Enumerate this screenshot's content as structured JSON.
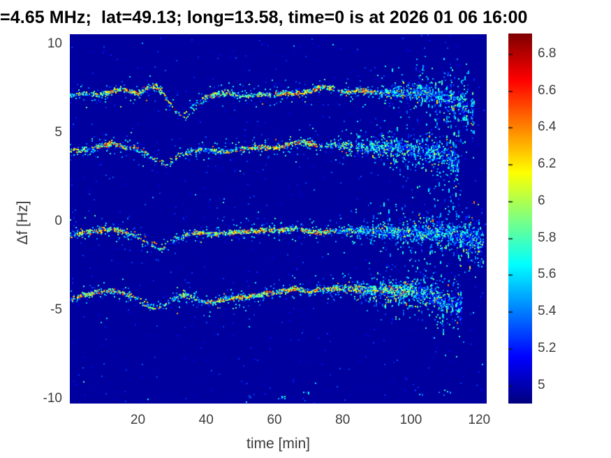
{
  "title": "=4.65 MHz;  lat=49.13; long=13.58, time=0 is at 2026 01 06 16:00",
  "chart_data": {
    "type": "heatmap",
    "title": "=4.65 MHz;  lat=49.13; long=13.58, time=0 is at 2026 01 06 16:00",
    "xlabel": "time [min]",
    "ylabel": "Δf [Hz]",
    "xlim": [
      0.05,
      122.2
    ],
    "ylim": [
      -10.26,
      10.57
    ],
    "xticks": [
      20,
      40,
      60,
      80,
      100,
      120
    ],
    "yticks": [
      10,
      5,
      0,
      -5,
      -10
    ],
    "grid": false,
    "legend": "none",
    "colorbar": {
      "range": [
        4.9,
        6.91
      ],
      "ticks": [
        5,
        5.2,
        5.4,
        5.6,
        5.8,
        6,
        6.2,
        6.4,
        6.6,
        6.8
      ],
      "colormap": "jet",
      "position": "right"
    },
    "background_value": 4.96,
    "seed": 7,
    "noise_count": 1000,
    "bottom_specks": [
      [
        53,
        -9.9
      ],
      [
        62,
        -9.85
      ],
      [
        69,
        -9.8
      ],
      [
        103,
        -9.75
      ],
      [
        110,
        -9.6
      ]
    ],
    "traces": [
      {
        "name": "doppler-trace-upper-1",
        "t_range": [
          0.3,
          119
        ],
        "fuzzy_start": 86,
        "gap": 0.12,
        "sparse": [
          [
            27,
            39
          ]
        ],
        "hot": [
          [
            10,
            26
          ],
          [
            40,
            47
          ],
          [
            55,
            90
          ]
        ],
        "points": [
          [
            0,
            7.1
          ],
          [
            4,
            7.25
          ],
          [
            8,
            7.15
          ],
          [
            12,
            7.3
          ],
          [
            15,
            7.55
          ],
          [
            17,
            7.4
          ],
          [
            20,
            7.25
          ],
          [
            23,
            7.55
          ],
          [
            25,
            7.65
          ],
          [
            27,
            7.35
          ],
          [
            29,
            6.75
          ],
          [
            31,
            6.2
          ],
          [
            32.5,
            6.05
          ],
          [
            34,
            6.2
          ],
          [
            36,
            6.55
          ],
          [
            38,
            6.85
          ],
          [
            40,
            7.05
          ],
          [
            43,
            7.2
          ],
          [
            46,
            7.3
          ],
          [
            49,
            7.15
          ],
          [
            52,
            7.1
          ],
          [
            56,
            7.2
          ],
          [
            60,
            7.15
          ],
          [
            63,
            7.3
          ],
          [
            66,
            7.25
          ],
          [
            70,
            7.35
          ],
          [
            74,
            7.65
          ],
          [
            76,
            7.55
          ],
          [
            79,
            7.35
          ],
          [
            82,
            7.3
          ],
          [
            85,
            7.45
          ],
          [
            88,
            7.35
          ],
          [
            92,
            7.3
          ],
          [
            96,
            7.35
          ],
          [
            100,
            7.25
          ],
          [
            104,
            7.3
          ],
          [
            108,
            7.1
          ],
          [
            112,
            6.85
          ],
          [
            115,
            6.6
          ],
          [
            119,
            6.25
          ]
        ],
        "ghost": {
          "t_range": [
            27.5,
            39
          ],
          "points": [
            [
              27.5,
              7.0
            ],
            [
              30,
              6.5
            ],
            [
              32,
              6.05
            ],
            [
              33.5,
              5.9
            ],
            [
              35,
              6.0
            ],
            [
              37,
              6.35
            ],
            [
              39,
              6.8
            ]
          ]
        }
      },
      {
        "name": "doppler-trace-upper-2",
        "t_range": [
          0.3,
          114
        ],
        "fuzzy_start": 74,
        "gap": 0.15,
        "sparse": [
          [
            20,
            34
          ]
        ],
        "hot": [
          [
            8,
            16
          ],
          [
            50,
            72
          ]
        ],
        "points": [
          [
            0,
            4.0
          ],
          [
            3,
            4.05
          ],
          [
            6,
            4.1
          ],
          [
            9,
            4.3
          ],
          [
            12,
            4.4
          ],
          [
            14,
            4.35
          ],
          [
            16,
            4.2
          ],
          [
            18,
            4.2
          ],
          [
            20,
            4.05
          ],
          [
            23,
            3.7
          ],
          [
            26,
            3.3
          ],
          [
            28,
            3.2
          ],
          [
            30,
            3.35
          ],
          [
            33,
            3.75
          ],
          [
            36,
            4.05
          ],
          [
            39,
            4.1
          ],
          [
            42,
            4.0
          ],
          [
            45,
            3.95
          ],
          [
            48,
            4.05
          ],
          [
            52,
            4.15
          ],
          [
            55,
            4.2
          ],
          [
            58,
            4.15
          ],
          [
            61,
            4.2
          ],
          [
            64,
            4.35
          ],
          [
            68,
            4.55
          ],
          [
            70,
            4.45
          ],
          [
            73,
            4.3
          ],
          [
            78,
            4.3
          ],
          [
            82,
            4.25
          ],
          [
            86,
            4.3
          ],
          [
            90,
            4.2
          ],
          [
            94,
            4.25
          ],
          [
            98,
            4.15
          ],
          [
            102,
            4.05
          ],
          [
            106,
            3.9
          ],
          [
            110,
            3.65
          ],
          [
            114,
            3.3
          ]
        ],
        "ghost": {
          "t_range": [
            17,
            33
          ],
          "points": [
            [
              17,
              4.45
            ],
            [
              19,
              4.3
            ],
            [
              22,
              4.0
            ],
            [
              25,
              3.6
            ],
            [
              27,
              3.4
            ],
            [
              29,
              3.5
            ],
            [
              31,
              3.7
            ],
            [
              33,
              3.95
            ]
          ]
        }
      },
      {
        "name": "doppler-trace-lower-1",
        "t_range": [
          0.3,
          121.5
        ],
        "fuzzy_start": 76,
        "gap": 0.1,
        "sparse": [
          [
            19,
            31
          ]
        ],
        "hot": [
          [
            3,
            17
          ],
          [
            36,
            75
          ]
        ],
        "points": [
          [
            0,
            -0.75
          ],
          [
            4,
            -0.6
          ],
          [
            8,
            -0.5
          ],
          [
            11,
            -0.4
          ],
          [
            13,
            -0.4
          ],
          [
            16,
            -0.55
          ],
          [
            19,
            -0.8
          ],
          [
            22,
            -1.1
          ],
          [
            25,
            -1.45
          ],
          [
            27,
            -1.5
          ],
          [
            29,
            -1.3
          ],
          [
            31,
            -1.0
          ],
          [
            34,
            -0.75
          ],
          [
            37,
            -0.6
          ],
          [
            40,
            -0.7
          ],
          [
            44,
            -0.65
          ],
          [
            48,
            -0.6
          ],
          [
            52,
            -0.55
          ],
          [
            56,
            -0.5
          ],
          [
            60,
            -0.45
          ],
          [
            63,
            -0.45
          ],
          [
            66,
            -0.35
          ],
          [
            69,
            -0.5
          ],
          [
            72,
            -0.6
          ],
          [
            76,
            -0.5
          ],
          [
            80,
            -0.45
          ],
          [
            84,
            -0.5
          ],
          [
            88,
            -0.55
          ],
          [
            92,
            -0.5
          ],
          [
            96,
            -0.55
          ],
          [
            100,
            -0.6
          ],
          [
            104,
            -0.55
          ],
          [
            108,
            -0.6
          ],
          [
            112,
            -0.7
          ],
          [
            116,
            -0.9
          ],
          [
            121,
            -1.2
          ]
        ],
        "ghost": {
          "t_range": [
            19,
            31
          ],
          "points": [
            [
              19,
              -0.6
            ],
            [
              22,
              -0.85
            ],
            [
              25,
              -1.2
            ],
            [
              27,
              -1.3
            ],
            [
              29,
              -1.1
            ],
            [
              31,
              -0.85
            ]
          ]
        }
      },
      {
        "name": "doppler-trace-lower-2",
        "t_range": [
          0.3,
          115
        ],
        "fuzzy_start": 74,
        "gap": 0.1,
        "sparse": [
          [
            18,
            30
          ]
        ],
        "hot": [
          [
            3,
            16
          ],
          [
            40,
            102
          ]
        ],
        "points": [
          [
            0,
            -4.35
          ],
          [
            3,
            -4.2
          ],
          [
            6,
            -4.05
          ],
          [
            9,
            -3.95
          ],
          [
            11,
            -3.9
          ],
          [
            14,
            -3.95
          ],
          [
            17,
            -4.15
          ],
          [
            20,
            -4.5
          ],
          [
            23,
            -4.8
          ],
          [
            25,
            -4.9
          ],
          [
            27,
            -4.75
          ],
          [
            30,
            -4.45
          ],
          [
            32,
            -4.2
          ],
          [
            34,
            -4.1
          ],
          [
            36,
            -4.25
          ],
          [
            38,
            -4.45
          ],
          [
            40,
            -4.55
          ],
          [
            42,
            -4.5
          ],
          [
            45,
            -4.4
          ],
          [
            48,
            -4.3
          ],
          [
            51,
            -4.25
          ],
          [
            54,
            -4.15
          ],
          [
            57,
            -4.05
          ],
          [
            60,
            -4.0
          ],
          [
            63,
            -3.9
          ],
          [
            66,
            -3.75
          ],
          [
            68,
            -3.85
          ],
          [
            70,
            -3.95
          ],
          [
            72,
            -3.85
          ],
          [
            75,
            -3.8
          ],
          [
            78,
            -3.75
          ],
          [
            82,
            -3.8
          ],
          [
            86,
            -3.85
          ],
          [
            90,
            -3.8
          ],
          [
            94,
            -3.85
          ],
          [
            97,
            -3.9
          ],
          [
            100,
            -3.85
          ],
          [
            103,
            -4.0
          ],
          [
            106,
            -4.2
          ],
          [
            109,
            -4.45
          ],
          [
            112,
            -4.7
          ],
          [
            115,
            -4.9
          ]
        ],
        "ghost": {
          "t_range": [
            17,
            30
          ],
          "points": [
            [
              17,
              -4.0
            ],
            [
              20,
              -4.3
            ],
            [
              23,
              -4.6
            ],
            [
              25,
              -4.7
            ],
            [
              27,
              -4.55
            ],
            [
              30,
              -4.3
            ]
          ]
        }
      }
    ]
  }
}
